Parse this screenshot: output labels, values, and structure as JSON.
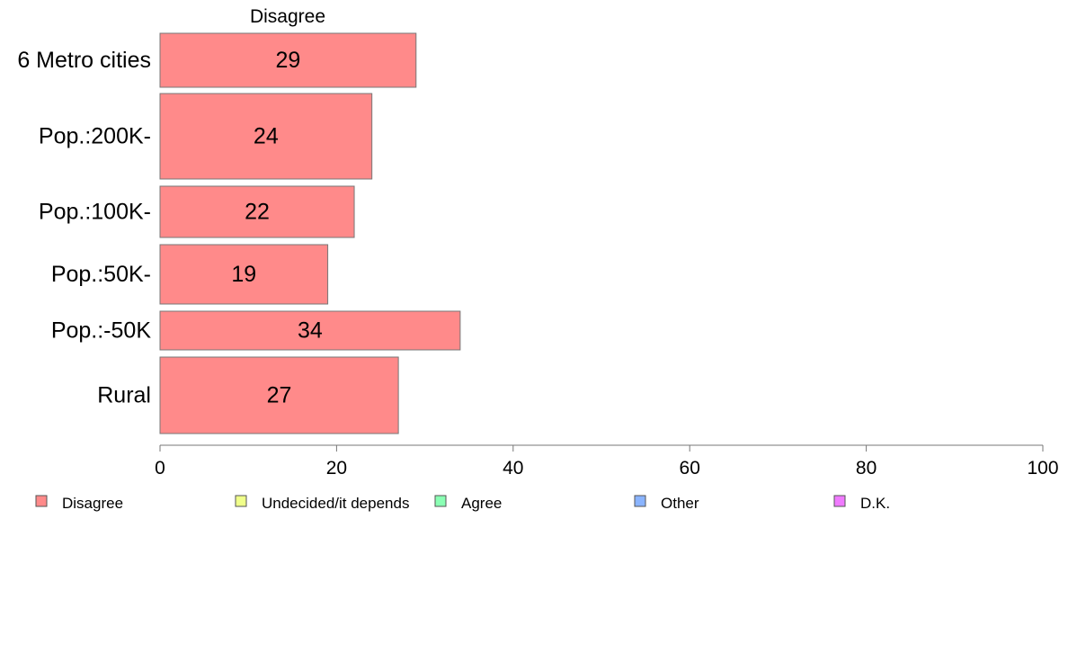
{
  "chart_data": {
    "type": "bar",
    "orientation": "horizontal",
    "title": "Disagree",
    "categories": [
      "6 Metro cities",
      "Pop.:200K-",
      "Pop.:100K-",
      "Pop.:50K-",
      "Pop.:-50K",
      "Rural"
    ],
    "series": [
      {
        "name": "Disagree",
        "values": [
          29,
          24,
          22,
          19,
          34,
          27
        ],
        "color": "#ff8a8a"
      }
    ],
    "value_labels": [
      "29",
      "24",
      "22",
      "19",
      "34",
      "27"
    ],
    "xlim": [
      0,
      100
    ],
    "x_ticks": [
      0,
      20,
      40,
      60,
      80,
      100
    ],
    "x_tick_labels": [
      "0",
      "20",
      "40",
      "60",
      "80",
      "100"
    ],
    "grid": false,
    "legend": {
      "placement": "bottom",
      "entries": [
        {
          "label": "Disagree",
          "color": "#ff8a8a"
        },
        {
          "label": "Undecided/it depends",
          "color": "#f0ff8a"
        },
        {
          "label": "Agree",
          "color": "#8affb4"
        },
        {
          "label": "Other",
          "color": "#8ab4ff"
        },
        {
          "label": "D.K.",
          "color": "#f07aff"
        }
      ]
    }
  }
}
